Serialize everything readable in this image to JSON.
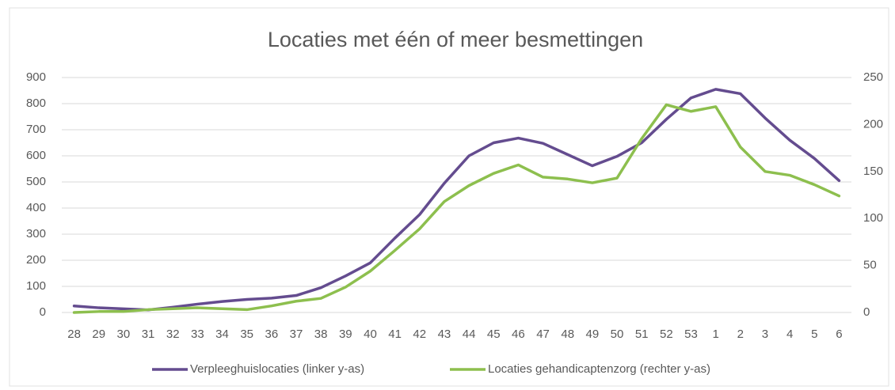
{
  "chart_data": {
    "type": "line",
    "title": "Locaties met één of meer besmettingen",
    "categories": [
      "28",
      "29",
      "30",
      "31",
      "32",
      "33",
      "34",
      "35",
      "36",
      "37",
      "38",
      "39",
      "40",
      "41",
      "42",
      "43",
      "44",
      "45",
      "46",
      "47",
      "48",
      "49",
      "50",
      "51",
      "52",
      "53",
      "1",
      "2",
      "3",
      "4",
      "5",
      "6"
    ],
    "series": [
      {
        "name": "Verpleeghuislocaties (linker y-as)",
        "color": "#644c8f",
        "axis": "y",
        "values": [
          25,
          18,
          14,
          10,
          20,
          32,
          42,
          50,
          55,
          65,
          95,
          140,
          190,
          285,
          375,
          495,
          600,
          650,
          668,
          648,
          605,
          562,
          598,
          650,
          740,
          822,
          855,
          838,
          745,
          660,
          590,
          505
        ]
      },
      {
        "name": "Locaties gehandicaptenzorg (rechter y-as)",
        "color": "#8dbf4e",
        "axis": "y2",
        "values": [
          0,
          1,
          1,
          3,
          4,
          5,
          4,
          3,
          7,
          12,
          15,
          27,
          44,
          66,
          89,
          118,
          135,
          148,
          157,
          144,
          142,
          138,
          143,
          185,
          221,
          214,
          219,
          176,
          150,
          146,
          136,
          124
        ]
      }
    ],
    "ylim": [
      0,
      900
    ],
    "yticks": [
      0,
      100,
      200,
      300,
      400,
      500,
      600,
      700,
      800,
      900
    ],
    "y2lim": [
      0,
      250
    ],
    "y2ticks": [
      0,
      50,
      100,
      150,
      200,
      250
    ],
    "grid": true,
    "legend": "bottom"
  }
}
